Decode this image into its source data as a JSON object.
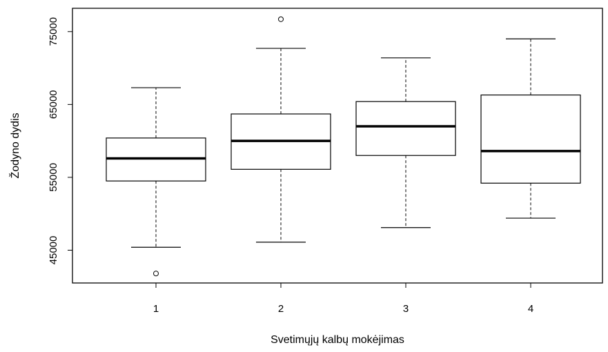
{
  "chart_data": {
    "type": "boxplot",
    "title": "",
    "xlabel": "Svetimųjų kalbų mokėjimas",
    "ylabel": "Žodyno dydis",
    "categories": [
      "1",
      "2",
      "3",
      "4"
    ],
    "y_ticks": [
      45000,
      55000,
      65000,
      75000
    ],
    "y_tick_labels": [
      "45000",
      "55000",
      "65000",
      "75000"
    ],
    "ylim": [
      40500,
      78200
    ],
    "grid": false,
    "boxes": [
      {
        "category": "1",
        "whisker_low": 45400,
        "q1": 54500,
        "median": 57600,
        "q3": 60400,
        "whisker_high": 67300,
        "outliers": [
          41800
        ]
      },
      {
        "category": "2",
        "whisker_low": 46100,
        "q1": 56100,
        "median": 60000,
        "q3": 63700,
        "whisker_high": 72700,
        "outliers": [
          76700
        ]
      },
      {
        "category": "3",
        "whisker_low": 48100,
        "q1": 58000,
        "median": 62000,
        "q3": 65400,
        "whisker_high": 71400,
        "outliers": []
      },
      {
        "category": "4",
        "whisker_low": 49400,
        "q1": 54200,
        "median": 58600,
        "q3": 66300,
        "whisker_high": 74000,
        "outliers": []
      }
    ]
  }
}
